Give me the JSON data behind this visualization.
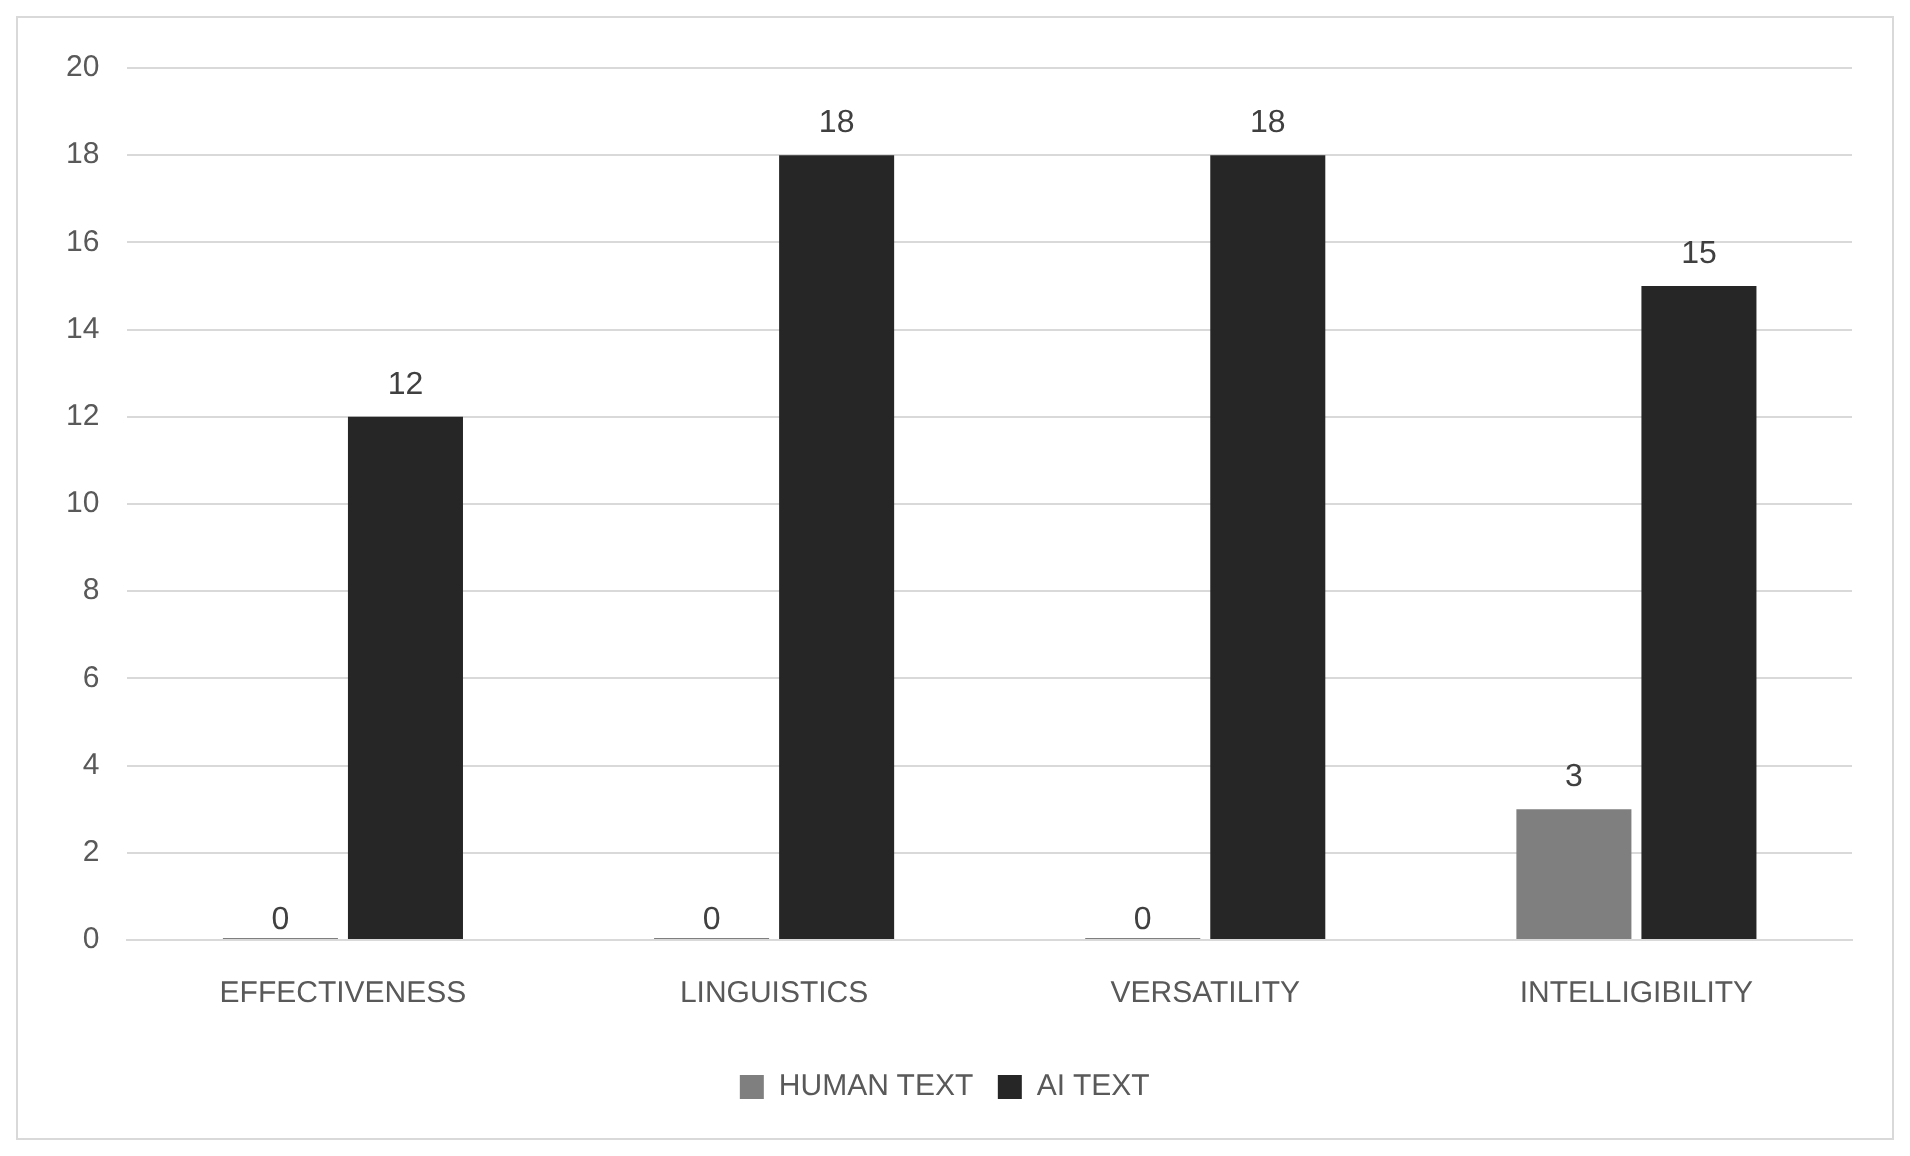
{
  "chart_data": {
    "type": "bar",
    "categories": [
      "EFFECTIVENESS",
      "LINGUISTICS",
      "VERSATILITY",
      "INTELLIGIBILITY"
    ],
    "series": [
      {
        "name": "HUMAN TEXT",
        "color": "#7f7f7f",
        "values": [
          0,
          0,
          0,
          3
        ]
      },
      {
        "name": "AI TEXT",
        "color": "#262626",
        "values": [
          12,
          18,
          18,
          15
        ]
      }
    ],
    "ylim": [
      0,
      20
    ],
    "yticks": [
      0,
      2,
      4,
      6,
      8,
      10,
      12,
      14,
      16,
      18,
      20
    ],
    "grid": "y",
    "legend": "bottom",
    "data_labels": true
  }
}
